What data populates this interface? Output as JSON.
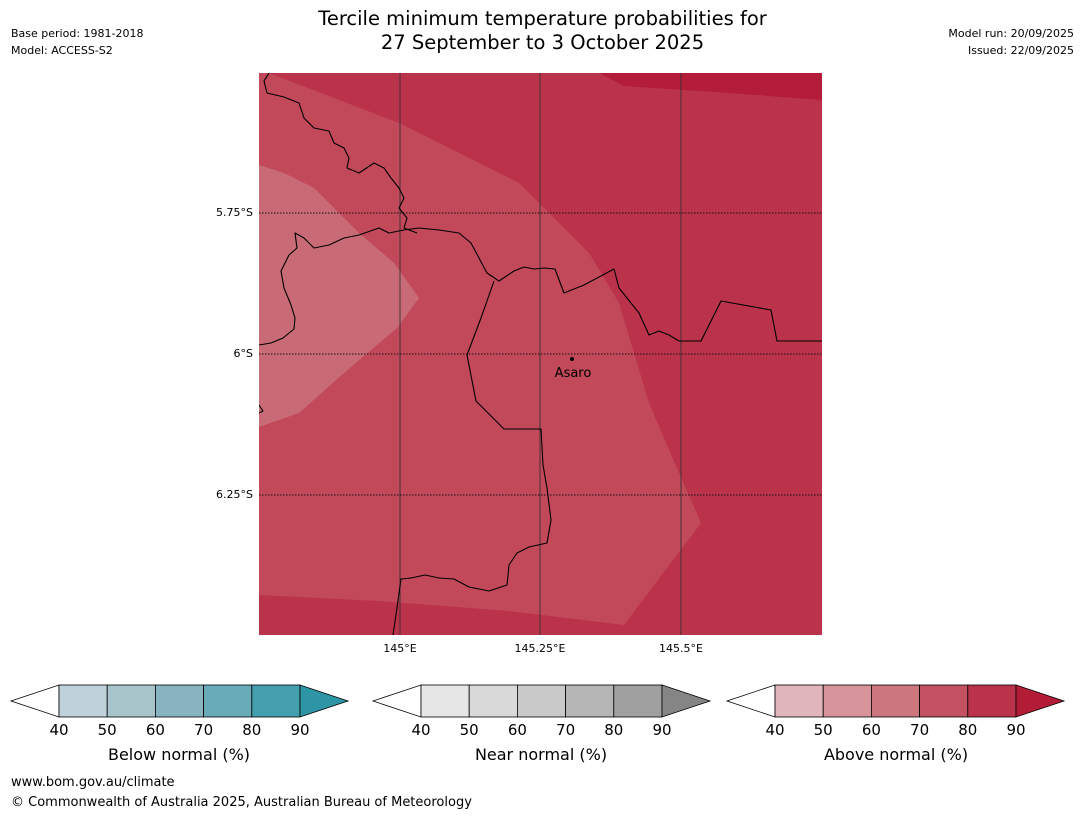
{
  "header": {
    "base_period": "Base period: 1981-2018",
    "model": "Model: ACCESS-S2",
    "title_line1": "Tercile minimum temperature probabilities for",
    "title_line2": "27 September to 3 October 2025",
    "model_run": "Model run: 20/09/2025",
    "issued": "Issued: 22/09/2025"
  },
  "map": {
    "latitude_labels": [
      "5.75°S",
      "6°S",
      "6.25°S"
    ],
    "longitude_labels": [
      "145°E",
      "145.25°E",
      "145.5°E"
    ],
    "place_label": "Asaro"
  },
  "colorbars": [
    {
      "title": "Below normal (%)",
      "ticks": [
        "40",
        "50",
        "60",
        "70",
        "80",
        "90"
      ],
      "colors": [
        "#ffffff",
        "#bdd3d9",
        "#a6c4ca",
        "#88b4c0",
        "#6aabb9",
        "#44a0ae",
        "#2e95a6"
      ]
    },
    {
      "title": "Near normal (%)",
      "ticks": [
        "40",
        "50",
        "60",
        "70",
        "80",
        "90"
      ],
      "colors": [
        "#ffffff",
        "#e6e6e6",
        "#d9d9d9",
        "#c9c9c9",
        "#b5b5b5",
        "#a0a0a0",
        "#858585"
      ]
    },
    {
      "title": "Above normal (%)",
      "ticks": [
        "40",
        "50",
        "60",
        "70",
        "80",
        "90"
      ],
      "colors": [
        "#ffffff",
        "#e1b6bb",
        "#d8949b",
        "#cc767e",
        "#c35262",
        "#bb334a",
        "#b21c37"
      ]
    }
  ],
  "footer": {
    "url": "www.bom.gov.au/climate",
    "copyright": "© Commonwealth of Australia 2025, Australian Bureau of Meteorology"
  }
}
